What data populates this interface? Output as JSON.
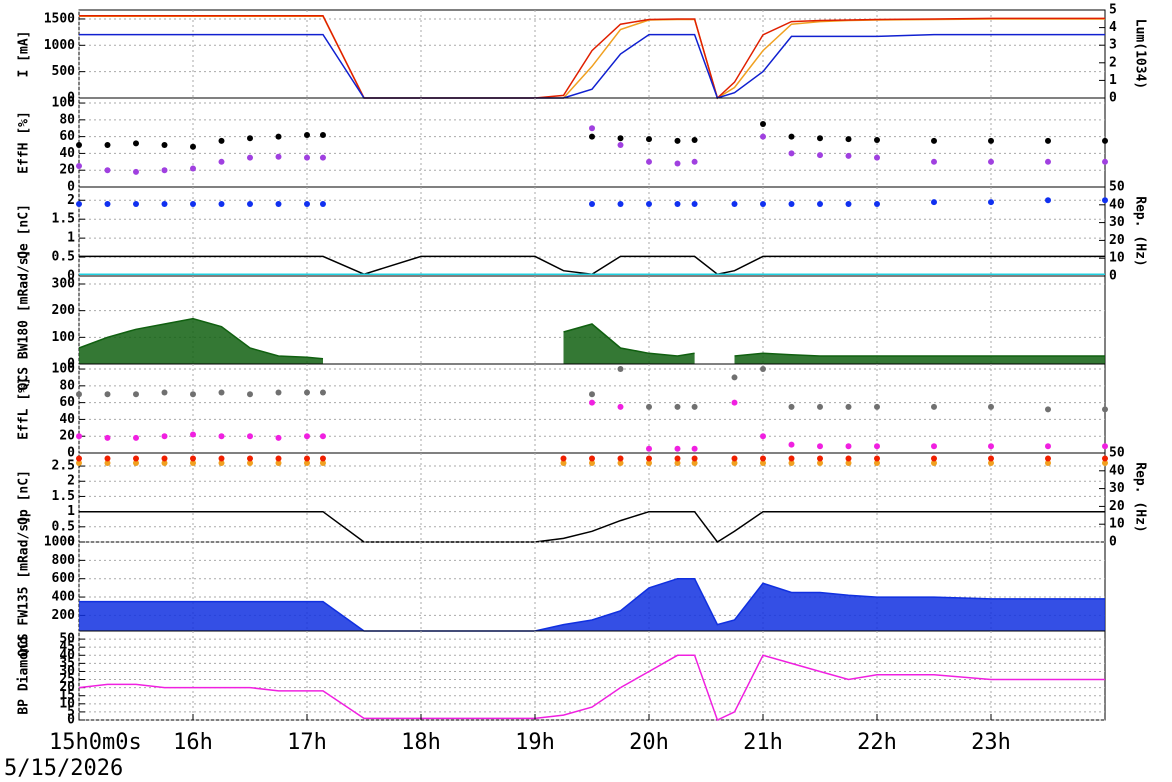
{
  "date": "5/15/2026",
  "chart_data": [
    {
      "type": "line",
      "ylabel": "I [mA]",
      "y2label": "Lum(1034)",
      "x": [
        15,
        15.25,
        15.5,
        15.75,
        16,
        16.25,
        16.5,
        16.75,
        17,
        17.14,
        17.5,
        18,
        18.5,
        19,
        19.25,
        19.5,
        19.75,
        20,
        20.25,
        20.4,
        20.6,
        20.75,
        21,
        21.25,
        21.5,
        21.75,
        22,
        22.5,
        23,
        23.5,
        24
      ],
      "xlim": [
        15,
        24
      ],
      "ylim": [
        0,
        1670
      ],
      "yticks": [
        0,
        500,
        1000,
        1500
      ],
      "y2lim": [
        0,
        5
      ],
      "y2ticks": [
        0,
        1,
        2,
        3,
        4,
        5
      ],
      "grid": true,
      "series": [
        {
          "color": "#f0a020",
          "values": [
            1550,
            1550,
            1550,
            1550,
            1550,
            1550,
            1550,
            1550,
            1550,
            1550,
            0,
            0,
            0,
            0,
            0,
            600,
            1300,
            1480,
            1490,
            1490,
            0,
            200,
            900,
            1400,
            1450,
            1470,
            1480,
            1490,
            1500,
            1500,
            1500
          ]
        },
        {
          "color": "#e02000",
          "values": [
            1560,
            1560,
            1560,
            1560,
            1560,
            1560,
            1560,
            1560,
            1560,
            1560,
            0,
            0,
            0,
            0,
            50,
            900,
            1400,
            1490,
            1500,
            1500,
            0,
            300,
            1200,
            1450,
            1470,
            1480,
            1490,
            1500,
            1510,
            1510,
            1510
          ]
        },
        {
          "color": "#1020d0",
          "axis": "y2",
          "values": [
            3.6,
            3.6,
            3.6,
            3.6,
            3.6,
            3.6,
            3.6,
            3.6,
            3.6,
            3.6,
            0,
            0,
            0,
            0,
            0,
            0.5,
            2.5,
            3.6,
            3.6,
            3.6,
            0,
            0.3,
            1.5,
            3.5,
            3.5,
            3.5,
            3.5,
            3.6,
            3.6,
            3.6,
            3.6
          ]
        }
      ]
    },
    {
      "type": "scatter",
      "ylabel": "EffH [%]",
      "x": [
        15,
        15.25,
        15.5,
        15.75,
        16,
        16.25,
        16.5,
        16.75,
        17,
        17.14,
        17.5,
        18,
        18.5,
        19,
        19.25,
        19.5,
        19.75,
        20,
        20.25,
        20.4,
        20.6,
        20.75,
        21,
        21.25,
        21.5,
        21.75,
        22,
        22.5,
        23,
        23.5,
        24
      ],
      "xlim": [
        15,
        24
      ],
      "ylim": [
        0,
        106
      ],
      "yticks": [
        0,
        20,
        40,
        60,
        80,
        100
      ],
      "grid": true,
      "series": [
        {
          "color": "#000000",
          "values": [
            50,
            50,
            52,
            50,
            48,
            55,
            58,
            60,
            62,
            62,
            null,
            null,
            null,
            null,
            null,
            60,
            58,
            57,
            55,
            56,
            null,
            null,
            75,
            60,
            58,
            57,
            56,
            55,
            55,
            55,
            55
          ]
        },
        {
          "color": "#a040e0",
          "values": [
            25,
            20,
            18,
            20,
            22,
            30,
            35,
            36,
            35,
            35,
            null,
            null,
            null,
            null,
            null,
            70,
            50,
            30,
            28,
            30,
            null,
            null,
            60,
            40,
            38,
            37,
            35,
            30,
            30,
            30,
            30
          ]
        }
      ]
    },
    {
      "type": "line",
      "ylabel": "Qe [nC]",
      "y2label": "Rep. (Hz)",
      "x": [
        15,
        15.25,
        15.5,
        15.75,
        16,
        16.25,
        16.5,
        16.75,
        17,
        17.14,
        17.5,
        18,
        18.5,
        19,
        19.25,
        19.5,
        19.75,
        20,
        20.25,
        20.4,
        20.6,
        20.75,
        21,
        21.25,
        21.5,
        21.75,
        22,
        22.5,
        23,
        23.5,
        24
      ],
      "xlim": [
        15,
        24
      ],
      "ylim": [
        0,
        2.35
      ],
      "yticks": [
        0,
        0.5,
        1,
        1.5,
        2
      ],
      "y2lim": [
        0,
        50
      ],
      "y2ticks": [
        0,
        10,
        20,
        30,
        40,
        50
      ],
      "grid": true,
      "series": [
        {
          "color": "#1030f0",
          "type": "scatter",
          "values": [
            1.9,
            1.9,
            1.9,
            1.9,
            1.9,
            1.9,
            1.9,
            1.9,
            1.9,
            1.9,
            null,
            null,
            null,
            null,
            null,
            1.9,
            1.9,
            1.9,
            1.9,
            1.9,
            null,
            1.9,
            1.9,
            1.9,
            1.9,
            1.9,
            1.9,
            1.95,
            1.95,
            2,
            2
          ]
        },
        {
          "color": "#000000",
          "axis": "y2",
          "values": [
            11,
            11,
            11,
            11,
            11,
            11,
            11,
            11,
            11,
            11,
            1,
            11,
            11,
            11,
            3,
            1,
            11,
            11,
            11,
            11,
            1,
            3,
            11,
            11,
            11,
            11,
            11,
            11,
            11,
            11,
            11
          ]
        },
        {
          "color": "#20d0e0",
          "axis": "y2",
          "values": [
            1,
            1,
            1,
            1,
            1,
            1,
            1,
            1,
            1,
            1,
            1,
            1,
            1,
            1,
            1,
            1,
            1,
            1,
            1,
            1,
            1,
            1,
            1,
            1,
            1,
            1,
            1,
            1,
            1,
            1,
            1
          ]
        }
      ]
    },
    {
      "type": "area",
      "ylabel": "QCS BW180 [mRad/s]",
      "x": [
        15,
        15.25,
        15.5,
        15.75,
        16,
        16.25,
        16.5,
        16.75,
        17,
        17.14,
        17.5,
        18,
        18.5,
        19,
        19.25,
        19.5,
        19.75,
        20,
        20.25,
        20.4,
        20.6,
        20.75,
        21,
        21.25,
        21.5,
        21.75,
        22,
        22.5,
        23,
        23.5,
        24
      ],
      "xlim": [
        15,
        24
      ],
      "ylim": [
        0,
        330
      ],
      "yticks": [
        0,
        100,
        200,
        300
      ],
      "grid": true,
      "series": [
        {
          "color": "#106010",
          "values": [
            60,
            100,
            130,
            150,
            170,
            140,
            60,
            30,
            25,
            20,
            null,
            null,
            null,
            null,
            120,
            150,
            60,
            40,
            30,
            40,
            null,
            30,
            40,
            35,
            30,
            30,
            30,
            30,
            30,
            30,
            30
          ]
        }
      ]
    },
    {
      "type": "scatter",
      "ylabel": "EffL [%]",
      "x": [
        15,
        15.25,
        15.5,
        15.75,
        16,
        16.25,
        16.5,
        16.75,
        17,
        17.14,
        17.5,
        18,
        18.5,
        19,
        19.25,
        19.5,
        19.75,
        20,
        20.25,
        20.4,
        20.6,
        20.75,
        21,
        21.25,
        21.5,
        21.75,
        22,
        22.5,
        23,
        23.5,
        24
      ],
      "xlim": [
        15,
        24
      ],
      "ylim": [
        0,
        106
      ],
      "yticks": [
        0,
        20,
        40,
        60,
        80,
        100
      ],
      "grid": true,
      "series": [
        {
          "color": "#707070",
          "values": [
            70,
            70,
            70,
            72,
            70,
            72,
            70,
            72,
            72,
            72,
            null,
            null,
            null,
            null,
            null,
            70,
            100,
            55,
            55,
            55,
            null,
            90,
            100,
            55,
            55,
            55,
            55,
            55,
            55,
            52,
            52
          ]
        },
        {
          "color": "#f020e0",
          "values": [
            20,
            18,
            18,
            20,
            22,
            20,
            20,
            18,
            20,
            20,
            null,
            null,
            null,
            null,
            null,
            60,
            55,
            5,
            5,
            5,
            null,
            60,
            20,
            10,
            8,
            8,
            8,
            8,
            8,
            8,
            8
          ]
        }
      ]
    },
    {
      "type": "line",
      "ylabel": "Qp [nC]",
      "y2label": "Rep. (Hz)",
      "x": [
        15,
        15.25,
        15.5,
        15.75,
        16,
        16.25,
        16.5,
        16.75,
        17,
        17.14,
        17.5,
        18,
        18.5,
        19,
        19.25,
        19.5,
        19.75,
        20,
        20.25,
        20.4,
        20.6,
        20.75,
        21,
        21.25,
        21.5,
        21.75,
        22,
        22.5,
        23,
        23.5,
        24
      ],
      "xlim": [
        15,
        24
      ],
      "ylim": [
        0,
        2.93
      ],
      "yticks": [
        0,
        0.5,
        1,
        1.5,
        2,
        2.5
      ],
      "y2lim": [
        0,
        50
      ],
      "y2ticks": [
        0,
        10,
        20,
        30,
        40,
        50
      ],
      "grid": true,
      "series": [
        {
          "color": "#f0a020",
          "type": "scatter",
          "values": [
            2.6,
            2.6,
            2.6,
            2.6,
            2.6,
            2.6,
            2.6,
            2.6,
            2.6,
            2.6,
            null,
            null,
            null,
            null,
            2.6,
            2.6,
            2.6,
            2.6,
            2.6,
            2.6,
            null,
            2.6,
            2.6,
            2.6,
            2.6,
            2.6,
            2.6,
            2.6,
            2.6,
            2.6,
            2.6
          ]
        },
        {
          "color": "#f02000",
          "type": "scatter",
          "values": [
            2.75,
            2.75,
            2.75,
            2.75,
            2.75,
            2.75,
            2.75,
            2.75,
            2.75,
            2.75,
            null,
            null,
            null,
            null,
            2.75,
            2.75,
            2.75,
            2.75,
            2.75,
            2.75,
            null,
            2.75,
            2.75,
            2.75,
            2.75,
            2.75,
            2.75,
            2.75,
            2.75,
            2.75,
            2.75
          ]
        },
        {
          "color": "#000000",
          "axis": "y2",
          "values": [
            17,
            17,
            17,
            17,
            17,
            17,
            17,
            17,
            17,
            17,
            0,
            0,
            0,
            0,
            2,
            6,
            12,
            17,
            17,
            17,
            0,
            6,
            17,
            17,
            17,
            17,
            17,
            17,
            17,
            17,
            17
          ]
        }
      ]
    },
    {
      "type": "area",
      "ylabel": "QCS FW135 [mRad/s]",
      "x": [
        15,
        15.25,
        15.5,
        15.75,
        16,
        16.25,
        16.5,
        16.75,
        17,
        17.14,
        17.5,
        18,
        18.5,
        19,
        19.25,
        19.5,
        19.75,
        20,
        20.25,
        20.4,
        20.6,
        20.75,
        21,
        21.25,
        21.5,
        21.75,
        22,
        22.5,
        23,
        23.5,
        24
      ],
      "xlim": [
        15,
        24
      ],
      "ylim": [
        30,
        1000
      ],
      "yticks": [
        200,
        400,
        600,
        800,
        1000
      ],
      "grid": true,
      "series": [
        {
          "color": "#1030e0",
          "values": [
            350,
            350,
            350,
            350,
            350,
            350,
            350,
            350,
            350,
            350,
            30,
            30,
            30,
            30,
            100,
            150,
            250,
            500,
            600,
            600,
            100,
            150,
            550,
            450,
            450,
            420,
            400,
            400,
            380,
            380,
            380
          ]
        }
      ]
    },
    {
      "type": "line",
      "ylabel": "BP Diamond",
      "x": [
        15,
        15.25,
        15.5,
        15.75,
        16,
        16.25,
        16.5,
        16.75,
        17,
        17.14,
        17.5,
        18,
        18.5,
        19,
        19.25,
        19.5,
        19.75,
        20,
        20.25,
        20.4,
        20.6,
        20.75,
        21,
        21.25,
        21.5,
        21.75,
        22,
        22.5,
        23,
        23.5,
        24
      ],
      "xlim": [
        15,
        24
      ],
      "ylim": [
        0,
        55
      ],
      "yticks": [
        0,
        5,
        10,
        15,
        20,
        25,
        30,
        35,
        40,
        45,
        50
      ],
      "grid": true,
      "xticks": [
        {
          "value": 15,
          "label": "15h0m0s"
        },
        {
          "value": 16,
          "label": "16h"
        },
        {
          "value": 17,
          "label": "17h"
        },
        {
          "value": 18,
          "label": "18h"
        },
        {
          "value": 19,
          "label": "19h"
        },
        {
          "value": 20,
          "label": "20h"
        },
        {
          "value": 21,
          "label": "21h"
        },
        {
          "value": 22,
          "label": "22h"
        },
        {
          "value": 23,
          "label": "23h"
        }
      ],
      "series": [
        {
          "color": "#f020e0",
          "values": [
            20,
            22,
            22,
            20,
            20,
            20,
            20,
            18,
            18,
            18,
            1,
            1,
            1,
            1,
            3,
            8,
            20,
            30,
            40,
            40,
            0,
            5,
            40,
            35,
            30,
            25,
            28,
            28,
            25,
            25,
            25
          ]
        }
      ]
    }
  ]
}
